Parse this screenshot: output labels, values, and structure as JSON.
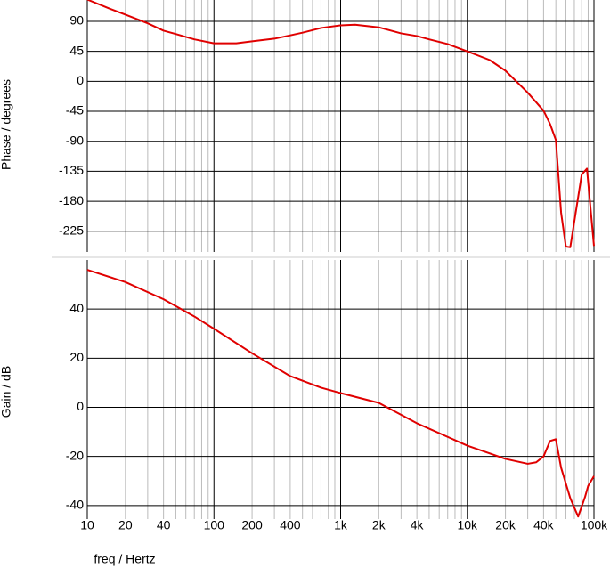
{
  "chart_data": [
    {
      "type": "line",
      "y_label": "Phase / degrees",
      "xscale": "log",
      "grid": true,
      "xlim": [
        10,
        100000
      ],
      "ylim": [
        -256,
        122
      ],
      "yticks": [
        90,
        45,
        0,
        -45,
        -90,
        -135,
        -180,
        -225
      ],
      "x": [
        10,
        15,
        20,
        30,
        40,
        50,
        70,
        100,
        150,
        200,
        300,
        400,
        500,
        700,
        1000,
        1300,
        2000,
        3000,
        4000,
        5000,
        7000,
        10000,
        15000,
        20000,
        30000,
        40000,
        45000,
        50000,
        55000,
        60000,
        65000,
        80000,
        88000,
        100000
      ],
      "series": [
        {
          "color": "#e00000",
          "values": [
            122.7,
            109,
            100,
            87,
            76,
            71,
            63,
            57,
            57,
            60,
            64,
            69,
            73,
            80,
            84,
            85,
            81,
            72,
            68,
            63,
            56,
            45,
            32,
            16,
            -17,
            -44,
            -64,
            -88,
            -197,
            -248,
            -249,
            -140,
            -131,
            -247
          ]
        }
      ]
    },
    {
      "type": "line",
      "y_label": "Gain / dB",
      "x_label": "freq / Hertz",
      "xscale": "log",
      "grid": true,
      "xlim": [
        10,
        100000
      ],
      "ylim": [
        -45.5,
        60
      ],
      "yticks": [
        40,
        20,
        0,
        -20,
        -40
      ],
      "xticks": [
        10,
        20,
        40,
        100,
        200,
        400,
        {
          "value": 1000,
          "label": "1k"
        },
        {
          "value": 2000,
          "label": "2k"
        },
        {
          "value": 4000,
          "label": "4k"
        },
        {
          "value": 10000,
          "label": "10k"
        },
        {
          "value": 20000,
          "label": "20k"
        },
        {
          "value": 40000,
          "label": "40k"
        },
        {
          "value": 100000,
          "label": "100k"
        }
      ],
      "x": [
        10,
        20,
        40,
        70,
        100,
        200,
        400,
        700,
        1000,
        2000,
        4000,
        10000,
        20000,
        30000,
        35000,
        40000,
        45000,
        50000,
        55000,
        65000,
        75000,
        85000,
        90000,
        100000
      ],
      "series": [
        {
          "color": "#e00000",
          "values": [
            56,
            51,
            44,
            37,
            32,
            22,
            12.7,
            8,
            5.8,
            1.8,
            -6.5,
            -15.6,
            -21,
            -23,
            -22.4,
            -20,
            -13.7,
            -13,
            -24.6,
            -37,
            -44.5,
            -36.5,
            -32,
            -28
          ]
        }
      ]
    }
  ]
}
